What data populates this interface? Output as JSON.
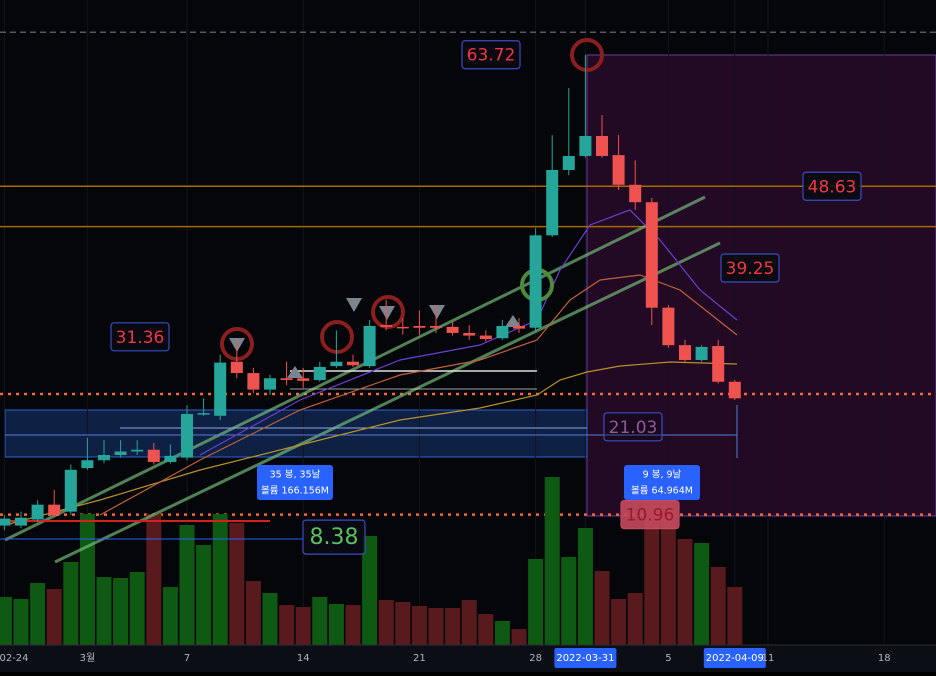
{
  "chart_data": {
    "type": "candlestick",
    "categories": [
      "02-24",
      null,
      null,
      null,
      null,
      "3월",
      null,
      null,
      null,
      null,
      null,
      "7",
      null,
      null,
      null,
      null,
      null,
      null,
      "14",
      null,
      null,
      null,
      null,
      null,
      null,
      "21",
      null,
      null,
      null,
      null,
      null,
      null,
      "28",
      null,
      null,
      "2022-03-31",
      null,
      null,
      null,
      null,
      "5",
      null,
      null,
      null,
      "2022-04-09",
      null,
      "11",
      null,
      null,
      null,
      null,
      null,
      null,
      "18"
    ],
    "open": [
      9.7,
      9.7,
      10.4,
      12.1,
      11.3,
      16.3,
      17.2,
      17.8,
      18.2,
      18.4,
      17.0,
      17.5,
      22.5,
      22.3,
      28.5,
      27.2,
      25.3,
      26.6,
      26.6,
      26.4,
      28.0,
      28.5,
      28.0,
      32.7,
      32.5,
      32.6,
      32.6,
      32.5,
      31.8,
      31.5,
      31.2,
      32.6,
      32.4,
      43.0,
      50.5,
      52.1,
      54.4,
      52.2,
      48.8,
      46.8,
      34.7,
      30.4,
      28.7,
      30.3,
      26.2,
      null,
      null,
      null,
      null,
      null,
      null,
      null,
      null,
      null
    ],
    "high": [
      10.9,
      11.3,
      12.6,
      13.8,
      16.7,
      19.8,
      19.5,
      19.5,
      19.5,
      19.2,
      19.0,
      23.5,
      24.3,
      29.3,
      31.0,
      27.8,
      27.0,
      28.5,
      27.8,
      28.5,
      32.1,
      29.3,
      33.3,
      35.6,
      33.5,
      34.4,
      35.0,
      33.1,
      32.7,
      32.1,
      33.3,
      33.5,
      43.8,
      54.5,
      59.9,
      63.72,
      56.8,
      54.5,
      51.6,
      47.3,
      35.0,
      31.0,
      30.4,
      31.0,
      26.4,
      null,
      null,
      null,
      null,
      null,
      null,
      null,
      null,
      null
    ],
    "low": [
      9.2,
      9.4,
      10.1,
      10.6,
      10.9,
      16.1,
      16.9,
      17.5,
      17.8,
      16.7,
      16.8,
      17.2,
      22.3,
      21.8,
      26.6,
      24.9,
      24.7,
      25.8,
      25.5,
      26.2,
      27.8,
      27.9,
      27.8,
      32.1,
      31.6,
      31.6,
      31.8,
      31.5,
      31.0,
      30.8,
      31.0,
      31.8,
      31.9,
      42.8,
      49.9,
      51.9,
      51.9,
      48.2,
      45.9,
      32.7,
      30.1,
      28.5,
      28.5,
      26.0,
      24.1,
      null,
      null,
      null,
      null,
      null,
      null,
      null,
      null,
      null
    ],
    "close": [
      10.5,
      10.6,
      12.1,
      10.9,
      16.1,
      17.2,
      17.8,
      18.2,
      18.4,
      17.0,
      17.7,
      22.5,
      22.6,
      28.4,
      27.2,
      25.3,
      26.6,
      26.4,
      26.3,
      27.9,
      28.5,
      28.1,
      32.6,
      32.5,
      32.4,
      32.4,
      32.4,
      31.8,
      31.5,
      31.1,
      32.6,
      32.3,
      43.0,
      50.5,
      52.1,
      54.4,
      52.1,
      48.8,
      46.8,
      34.7,
      30.4,
      28.7,
      30.2,
      26.2,
      24.3,
      null,
      null,
      null,
      null,
      null,
      null,
      null,
      null,
      null
    ],
    "volume": [
      48,
      46,
      62,
      56,
      83,
      131,
      68,
      67,
      73,
      131,
      58,
      120,
      100,
      131,
      122,
      64,
      52,
      40,
      38,
      48,
      41,
      40,
      109,
      45,
      43,
      39,
      37,
      37,
      45,
      31,
      24,
      16,
      86,
      168,
      88,
      117,
      74,
      46,
      52,
      160,
      145,
      106,
      102,
      78,
      58,
      null,
      null,
      null,
      null,
      null,
      null,
      null,
      null,
      null
    ],
    "ylim": [
      -4,
      70
    ],
    "vlim": [
      0,
      240
    ],
    "up_color": "#26a69a",
    "down_color": "#ef5350",
    "volume_up_color": "#0e5a12",
    "volume_down_color": "#581a1c",
    "levels": [
      {
        "value": 66.3,
        "color": "#555a66",
        "style": "dashed"
      },
      {
        "value": 48.63,
        "color": "#a66a00",
        "style": "solid"
      },
      {
        "value": 44.0,
        "color": "#a66a00",
        "style": "solid"
      },
      {
        "value": 24.8,
        "color": "#f2683c",
        "style": "dotted"
      },
      {
        "value": 10.96,
        "color": "#f2683c",
        "style": "dotted"
      }
    ],
    "price_labels": [
      {
        "value": 63.72,
        "color": "#f23645"
      },
      {
        "value": 48.63,
        "color": "#f23645"
      },
      {
        "value": 39.25,
        "color": "#f23645"
      },
      {
        "value": 31.36,
        "color": "#f23645"
      },
      {
        "value": 21.03,
        "color": "#8e5a9a"
      },
      {
        "value": 10.96,
        "color": "#9a1a28"
      },
      {
        "value": 8.38,
        "color": "#5cbf60"
      }
    ],
    "measures": [
      {
        "bars": "35 봉, 35날",
        "volume": "볼륨 166.156M"
      },
      {
        "bars": "9 봉, 9날",
        "volume": "볼륨 64.964M"
      }
    ]
  }
}
